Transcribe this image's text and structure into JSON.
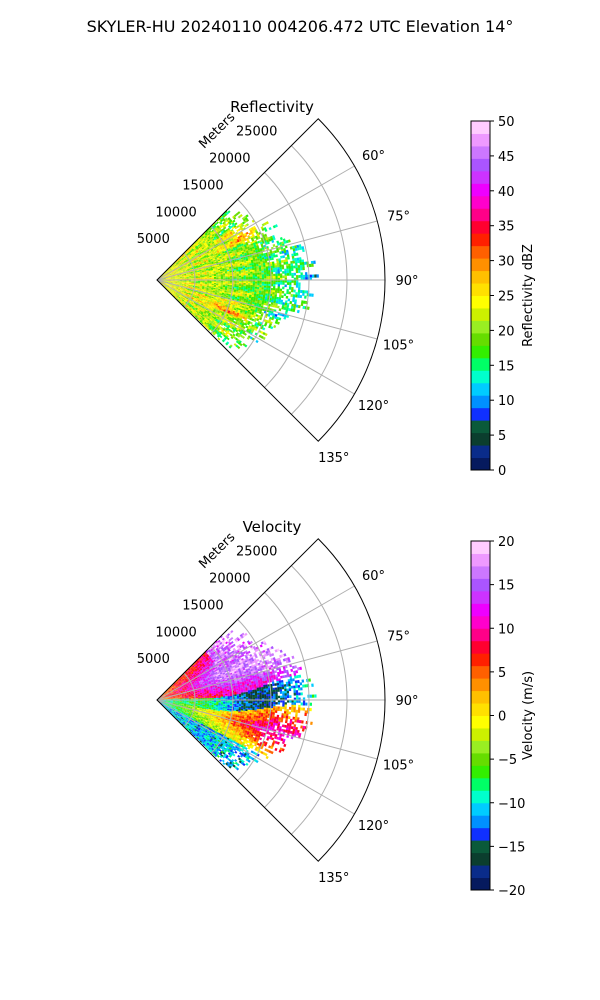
{
  "figure": {
    "title": "SKYLER-HU  20240110  004206.472 UTC Elevation 14°"
  },
  "chart_data": [
    {
      "type": "heatmap",
      "projection": "polar-sector",
      "title": "Reflectivity",
      "radial_label": "Meters",
      "radial_ticks": [
        5000,
        10000,
        15000,
        20000,
        25000
      ],
      "radial_tick_labels": [
        "5000",
        "10000",
        "15000",
        "20000",
        "25000"
      ],
      "r_max": 30000,
      "azimuth_range_deg": [
        45,
        135
      ],
      "azimuth_ticks": [
        60,
        75,
        90,
        105,
        120,
        135
      ],
      "azimuth_tick_labels": [
        "60°",
        "75°",
        "90°",
        "105°",
        "120°",
        "135°"
      ],
      "grid": true,
      "data_extent_m": 20000,
      "colorbar": {
        "label": "Reflectivity dBZ",
        "min": 0,
        "max": 50,
        "ticks": [
          0,
          5,
          10,
          15,
          20,
          25,
          30,
          35,
          40,
          45,
          50
        ],
        "tick_labels": [
          "0",
          "5",
          "10",
          "15",
          "20",
          "25",
          "30",
          "35",
          "40",
          "45",
          "50"
        ],
        "colors": [
          "#061a5e",
          "#0a2c8a",
          "#0b3e2e",
          "#0a5a3a",
          "#1030ff",
          "#0090ff",
          "#00ccff",
          "#00ffcc",
          "#00ff66",
          "#33ee00",
          "#66dd00",
          "#99ee22",
          "#ccf000",
          "#ffff00",
          "#ffe000",
          "#ffc000",
          "#ff9000",
          "#ff6000",
          "#ff2000",
          "#ff0030",
          "#ff0088",
          "#ff00cc",
          "#ee00ff",
          "#cc33ff",
          "#aa55ff",
          "#cc77ff",
          "#ee99ff",
          "#ffccff"
        ]
      }
    },
    {
      "type": "heatmap",
      "projection": "polar-sector",
      "title": "Velocity",
      "radial_label": "Meters",
      "radial_ticks": [
        5000,
        10000,
        15000,
        20000,
        25000
      ],
      "radial_tick_labels": [
        "5000",
        "10000",
        "15000",
        "20000",
        "25000"
      ],
      "r_max": 30000,
      "azimuth_range_deg": [
        45,
        135
      ],
      "azimuth_ticks": [
        60,
        75,
        90,
        105,
        120,
        135
      ],
      "azimuth_tick_labels": [
        "60°",
        "75°",
        "90°",
        "105°",
        "120°",
        "135°"
      ],
      "grid": true,
      "data_extent_m": 20000,
      "colorbar": {
        "label": "Velocity (m/s)",
        "min": -20,
        "max": 20,
        "ticks": [
          -20,
          -15,
          -10,
          -5,
          0,
          5,
          10,
          15,
          20
        ],
        "tick_labels": [
          "−20",
          "−15",
          "−10",
          "−5",
          "0",
          "5",
          "10",
          "15",
          "20"
        ],
        "colors": [
          "#061a5e",
          "#0a2c8a",
          "#0b3e2e",
          "#0a5a3a",
          "#1030ff",
          "#0090ff",
          "#00ccff",
          "#00ffcc",
          "#00ff66",
          "#33ee00",
          "#66dd00",
          "#99ee22",
          "#ccf000",
          "#ffff00",
          "#ffe000",
          "#ffc000",
          "#ff9000",
          "#ff6000",
          "#ff2000",
          "#ff0030",
          "#ff0088",
          "#ff00cc",
          "#ee00ff",
          "#cc33ff",
          "#aa55ff",
          "#cc77ff",
          "#ee99ff",
          "#ffccff"
        ]
      }
    }
  ]
}
